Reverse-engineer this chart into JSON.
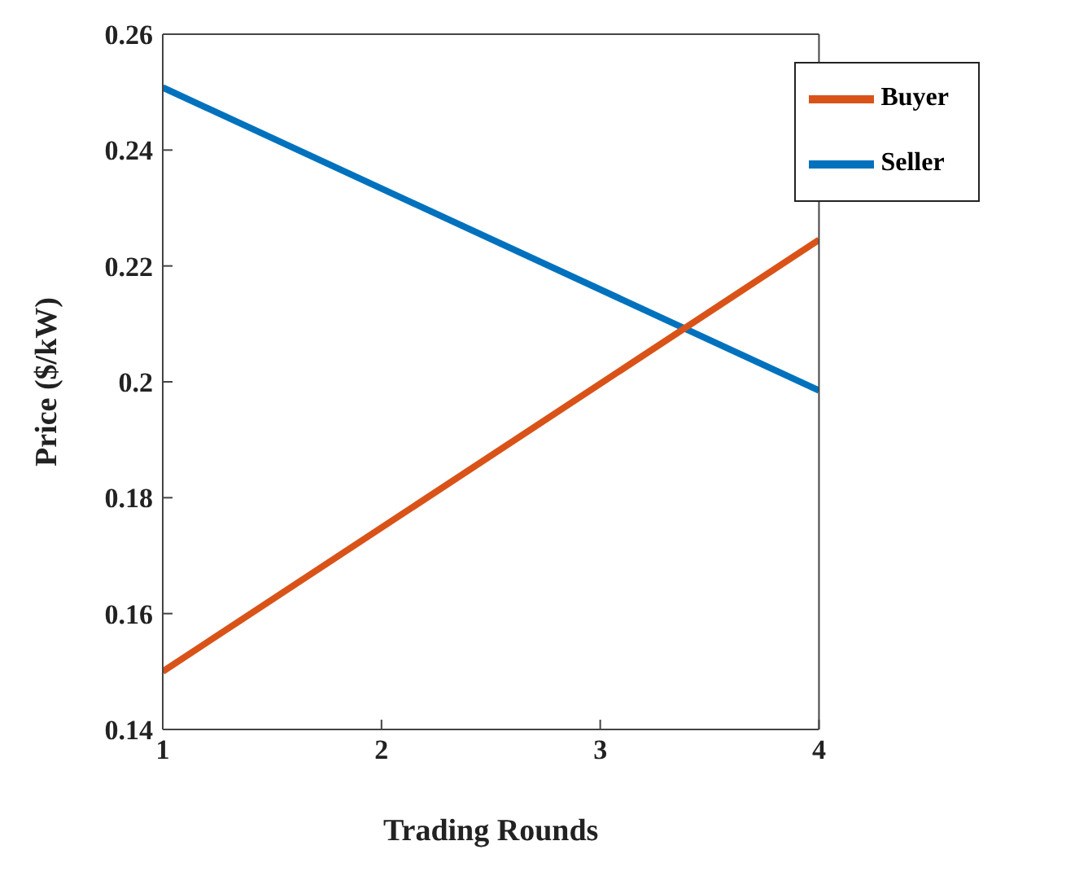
{
  "chart_data": {
    "type": "line",
    "xlabel": "Trading Rounds",
    "ylabel": "Price  ($/kW)",
    "x": [
      1,
      4
    ],
    "series": [
      {
        "name": "Seller",
        "color": "#0072bd",
        "values": [
          0.2508,
          0.1985
        ]
      },
      {
        "name": "Buyer",
        "color": "#d95319",
        "values": [
          0.15,
          0.2245
        ]
      }
    ],
    "xlim": [
      1,
      4
    ],
    "xticks": [
      1,
      2,
      3,
      4
    ],
    "ylim": [
      0.14,
      0.26
    ],
    "yticks": [
      0.14,
      0.16,
      0.18,
      0.2,
      0.22,
      0.24,
      0.26
    ],
    "grid": false,
    "legend": "top right",
    "marker": "none",
    "line_style": "solid"
  }
}
